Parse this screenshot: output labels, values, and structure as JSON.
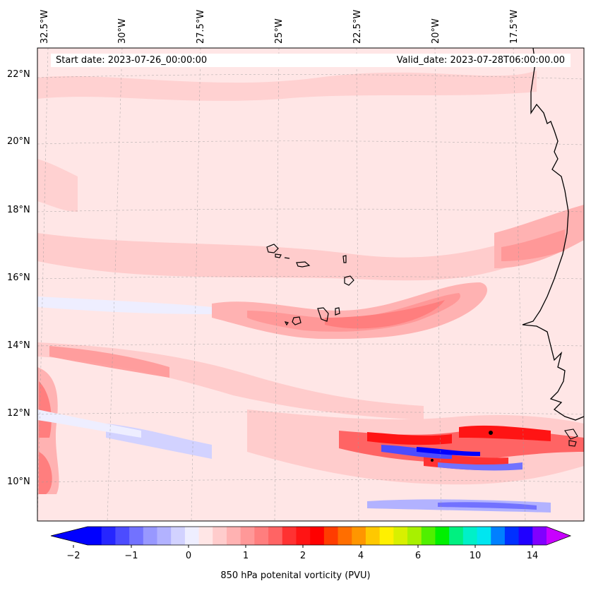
{
  "map": {
    "title_left": "Start date: 2023-07-26_00:00:00",
    "title_right": "Valid_date: 2023-07-28T06:00:00.00",
    "variable": "850 hPa potential vorticity",
    "longitude_labels": [
      "32.5°W",
      "30°W",
      "27.5°W",
      "25°W",
      "22.5°W",
      "20°W",
      "17.5°W"
    ],
    "latitude_labels": [
      "22°N",
      "20°N",
      "18°N",
      "16°N",
      "14°N",
      "12°N",
      "10°N"
    ],
    "places": [
      "Cape Verde Islands",
      "West African coast"
    ]
  },
  "colorbar": {
    "label": "850 hPa potenital vorticity (PVU)",
    "tick_labels": [
      "−2",
      "−1",
      "0",
      "1",
      "2",
      "4",
      "6",
      "10",
      "14"
    ],
    "colors": [
      "#0000ff",
      "#2626ff",
      "#4c4cff",
      "#7272ff",
      "#9898ff",
      "#b2b2ff",
      "#d2d2ff",
      "#eeeeff",
      "#ffe6e6",
      "#ffcccc",
      "#ffb2b2",
      "#ff9898",
      "#ff7e7e",
      "#ff6464",
      "#ff3232",
      "#ff1414",
      "#ff0000",
      "#ff3c00",
      "#ff6e00",
      "#ff9600",
      "#ffc800",
      "#fff000",
      "#d8f000",
      "#a8f000",
      "#50f000",
      "#00f000",
      "#00f080",
      "#00f0c8",
      "#00e6f0",
      "#0080ff",
      "#0030ff",
      "#2000ff",
      "#8000ff"
    ],
    "extend_low_color": "#0000ff",
    "extend_high_color": "#c800ff"
  }
}
